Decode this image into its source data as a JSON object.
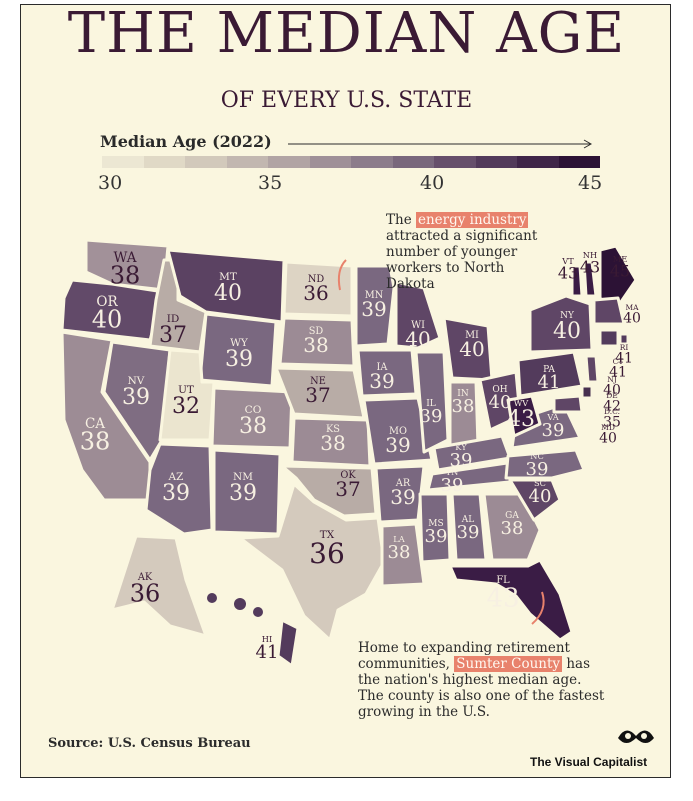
{
  "title": "THE MEDIAN AGE",
  "subtitle": "OF EVERY U.S. STATE",
  "legend": {
    "title": "Median Age (2022)",
    "ticks": [
      "30",
      "35",
      "40",
      "45"
    ],
    "colors": [
      "#ece7d3",
      "#e0d9c6",
      "#d2c9bb",
      "#c2b7b0",
      "#b1a4a4",
      "#9f9098",
      "#8c7c8b",
      "#79677c",
      "#664f6b",
      "#523a5a",
      "#3f2548",
      "#2c1235"
    ]
  },
  "states": [
    {
      "abbr": "WA",
      "age": "38",
      "color": "#a29199"
    },
    {
      "abbr": "OR",
      "age": "40",
      "color": "#624a69"
    },
    {
      "abbr": "CA",
      "age": "38",
      "color": "#9d8c95"
    },
    {
      "abbr": "ID",
      "age": "37",
      "color": "#b8aca6"
    },
    {
      "abbr": "NV",
      "age": "39",
      "color": "#7f6d82"
    },
    {
      "abbr": "MT",
      "age": "40",
      "color": "#5b4262"
    },
    {
      "abbr": "WY",
      "age": "39",
      "color": "#7a6880"
    },
    {
      "abbr": "UT",
      "age": "32",
      "color": "#ebe5cf"
    },
    {
      "abbr": "AZ",
      "age": "39",
      "color": "#7a6880"
    },
    {
      "abbr": "CO",
      "age": "38",
      "color": "#9c8b95"
    },
    {
      "abbr": "NM",
      "age": "39",
      "color": "#7a6880"
    },
    {
      "abbr": "ND",
      "age": "36",
      "color": "#ddd4c4"
    },
    {
      "abbr": "SD",
      "age": "38",
      "color": "#9c8b95"
    },
    {
      "abbr": "NE",
      "age": "37",
      "color": "#b8aca6"
    },
    {
      "abbr": "KS",
      "age": "38",
      "color": "#9c8b95"
    },
    {
      "abbr": "OK",
      "age": "37",
      "color": "#b8aca6"
    },
    {
      "abbr": "TX",
      "age": "36",
      "color": "#d4cabd"
    },
    {
      "abbr": "MN",
      "age": "39",
      "color": "#7a6880"
    },
    {
      "abbr": "IA",
      "age": "39",
      "color": "#7a6880"
    },
    {
      "abbr": "MO",
      "age": "39",
      "color": "#7a6880"
    },
    {
      "abbr": "AR",
      "age": "39",
      "color": "#7a6880"
    },
    {
      "abbr": "LA",
      "age": "38",
      "color": "#9c8b95"
    },
    {
      "abbr": "WI",
      "age": "40",
      "color": "#5f4666"
    },
    {
      "abbr": "IL",
      "age": "39",
      "color": "#7a6880"
    },
    {
      "abbr": "MI",
      "age": "40",
      "color": "#5f4666"
    },
    {
      "abbr": "IN",
      "age": "38",
      "color": "#9c8b95"
    },
    {
      "abbr": "OH",
      "age": "40",
      "color": "#5f4666"
    },
    {
      "abbr": "KY",
      "age": "39",
      "color": "#7a6880"
    },
    {
      "abbr": "TN",
      "age": "39",
      "color": "#7a6880"
    },
    {
      "abbr": "MS",
      "age": "39",
      "color": "#7a6880"
    },
    {
      "abbr": "AL",
      "age": "39",
      "color": "#7a6880"
    },
    {
      "abbr": "GA",
      "age": "38",
      "color": "#9c8b95"
    },
    {
      "abbr": "FL",
      "age": "43",
      "color": "#3a1c45"
    },
    {
      "abbr": "SC",
      "age": "40",
      "color": "#5f4666"
    },
    {
      "abbr": "NC",
      "age": "39",
      "color": "#7a6880"
    },
    {
      "abbr": "VA",
      "age": "39",
      "color": "#7a6880"
    },
    {
      "abbr": "WV",
      "age": "43",
      "color": "#3a1c45"
    },
    {
      "abbr": "PA",
      "age": "41",
      "color": "#533b5c"
    },
    {
      "abbr": "NY",
      "age": "40",
      "color": "#5f4666"
    },
    {
      "abbr": "VT",
      "age": "43",
      "color": "#3a1c45"
    },
    {
      "abbr": "NH",
      "age": "43",
      "color": "#3a1c45"
    },
    {
      "abbr": "ME",
      "age": "45",
      "color": "#2c1235"
    },
    {
      "abbr": "MA",
      "age": "40",
      "color": "#5f4666"
    },
    {
      "abbr": "RI",
      "age": "41",
      "color": "#533b5c"
    },
    {
      "abbr": "CT",
      "age": "41",
      "color": "#533b5c"
    },
    {
      "abbr": "NJ",
      "age": "40",
      "color": "#5f4666"
    },
    {
      "abbr": "DE",
      "age": "42",
      "color": "#47304f"
    },
    {
      "abbr": "D.C.",
      "age": "35",
      "color": "#e0d9c6"
    },
    {
      "abbr": "MD",
      "age": "40",
      "color": "#5f4666"
    },
    {
      "abbr": "AK",
      "age": "36",
      "color": "#d4cabd"
    },
    {
      "abbr": "HI",
      "age": "41",
      "color": "#533b5c"
    }
  ],
  "annotations": {
    "nd": {
      "pre": "The ",
      "highlight": "energy industry",
      "post": " attracted a significant number of younger workers to North Dakota"
    },
    "fl": {
      "pre": "Home to expanding retirement communities, ",
      "highlight": "Sumter County",
      "post": " has the nation's highest median age. The county is also one of the fastest growing in the U.S."
    }
  },
  "source": "Source: U.S. Census Bureau",
  "brand": "The Visual Capitalist"
}
